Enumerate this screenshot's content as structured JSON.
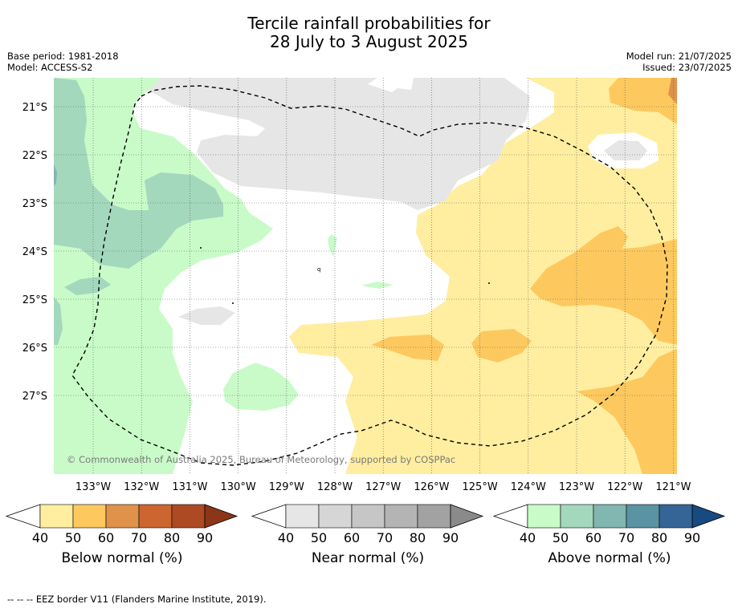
{
  "title_line1": "Tercile rainfall probabilities for",
  "title_line2": "28 July to 3 August 2025",
  "base_period": "Base period: 1981-2018",
  "model": "Model: ACCESS-S2",
  "model_run": "Model run: 21/07/2025",
  "issued": "Issued: 23/07/2025",
  "copyright": "© Commonwealth of Australia 2025, Bureau of Meteorology, supported by COSPPac",
  "lat_labels": [
    "21°S",
    "22°S",
    "23°S",
    "24°S",
    "25°S",
    "26°S",
    "27°S"
  ],
  "lon_labels": [
    "133°W",
    "132°W",
    "131°W",
    "130°W",
    "129°W",
    "128°W",
    "127°W",
    "126°W",
    "125°W",
    "124°W",
    "123°W",
    "122°W",
    "121°W"
  ],
  "colorbars": [
    {
      "label": "Below normal (%)",
      "ticks": [
        "40",
        "50",
        "60",
        "70",
        "80",
        "90"
      ],
      "colors": [
        "#ffeea0",
        "#fdc95f",
        "#e0924a",
        "#cc6530",
        "#ad4a24",
        "#8c3618"
      ]
    },
    {
      "label": "Near normal (%)",
      "ticks": [
        "40",
        "50",
        "60",
        "70",
        "80",
        "90"
      ],
      "colors": [
        "#e6e6e6",
        "#d6d6d6",
        "#c6c6c6",
        "#b4b4b4",
        "#a2a2a2",
        "#8a8a8a"
      ]
    },
    {
      "label": "Above normal (%)",
      "ticks": [
        "40",
        "50",
        "60",
        "70",
        "80",
        "90"
      ],
      "colors": [
        "#c9fbc9",
        "#a4d8bd",
        "#82b6b0",
        "#5a93a2",
        "#346596",
        "#164a80"
      ]
    }
  ],
  "footer": "-- -- -- EEZ border V11 (Flanders Marine Institute, 2019)."
}
